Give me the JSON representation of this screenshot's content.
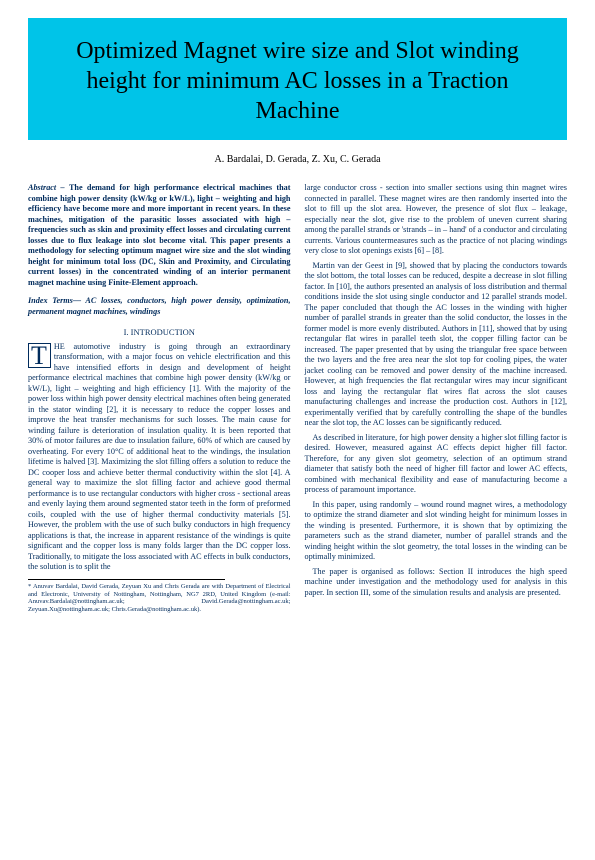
{
  "title": "Optimized Magnet wire size and Slot winding height for minimum AC losses in a Traction Machine",
  "authors": "A. Bardalai, D. Gerada, Z. Xu, C. Gerada",
  "abstract_lead": "Abstract – ",
  "abstract": "The demand for high performance electrical machines that combine high power density (kW/kg or kW/L), light – weighting and high efficiency have become more and more important in recent years. In these machines, mitigation of the parasitic losses associated with high – frequencies such as skin and proximity effect losses and circulating current losses due to flux leakage into slot become vital. This paper presents a methodology for selecting optimum magnet wire size and the slot winding height for minimum total loss (DC, Skin and Proximity, and Circulating current losses) in the concentrated winding of an interior permanent magnet machine using Finite-Element approach.",
  "index_terms_lead": "Index Terms— ",
  "index_terms": "AC losses, conductors, high power density, optimization, permanent magnet machines, windings",
  "section1": "I.   INTRODUCTION",
  "intro_first": "HE automotive industry is going through an extraordinary transformation, with a major focus on vehicle electrification and this have intensified efforts in design and development of height performance electrical machines that combine high power density (kW/kg or kW/L), light – weighting and high efficiency [1]. With the majority of the power loss within high power density electrical machines often being generated in the stator winding [2], it is necessary to reduce the copper losses and improve the heat transfer mechanisms for such losses. The main cause for winding failure is deterioration of insulation quality. It is been reported that 30% of motor failures are due to insulation failure, 60% of which are caused by overheating. For every 10°C of additional heat to the windings, the insulation lifetime is halved [3]. Maximizing the slot filling offers a solution to reduce the DC cooper loss and achieve better thermal conductivity within the slot [4]. A general way to maximize the slot filling factor and achieve good thermal performance is to use rectangular conductors with higher cross - sectional areas and evenly laying them around segmented stator teeth in the form of preformed coils, coupled with the use of higher thermal conductivity materials [5]. However, the problem with the use of such bulky conductors in high frequency applications is that, the increase in apparent resistance of the windings is quite significant and the copper loss is many folds larger than the DC copper loss. Traditionally, to mitigate the loss associated with AC effects in bulk conductors, the solution is to split the",
  "col2_p1": "large conductor cross - section into smaller sections using thin magnet wires connected in parallel. These magnet wires are then randomly inserted into the slot to fill up the slot area. However, the presence of slot flux – leakage, especially near the slot, give rise to the problem of uneven current sharing among the parallel strands or 'strands – in – hand' of a conductor and circulating currents. Various countermeasures such as the practice of not placing windings very close to slot openings exists [6] – [8].",
  "col2_p2": "Martin van der Geest in [9], showed that by placing the conductors towards the slot bottom, the total losses can be reduced, despite a decrease in slot filling factor. In [10], the authors presented an analysis of loss distribution and thermal conditions inside the slot using single conductor and 12 parallel strands model. The paper concluded that though the AC losses in the winding with higher number of parallel strands in greater than the solid conductor, the losses in the former model is more evenly distributed. Authors in [11], showed that by using rectangular flat wires in parallel teeth slot, the copper filling factor can be increased. The paper presented that by using the triangular free space between the two layers and the free area near the slot top for cooling pipes, the water jacket cooling can be removed and power density of the machine increased. However, at high frequencies the flat rectangular wires may incur significant loss and laying the rectangular flat wires flat across the slot causes manufacturing challenges and increase the production cost. Authors in [12], experimentally verified that by carefully controlling the shape of the bundles near the slot top, the AC losses can be significantly reduced.",
  "col2_p3": "As described in literature, for high power density a higher slot filling factor is desired. However, measured against AC effects depict higher fill factor. Therefore, for any given slot geometry, selection of an optimum strand diameter that satisfy both the need of higher fill factor and lower AC effects, combined with mechanical flexibility and ease of manufacturing become a process of paramount importance.",
  "col2_p4": "In this paper, using randomly – wound round magnet wires, a methodology to optimize the strand diameter and slot winding height for minimum losses in the winding is presented. Furthermore, it is shown that by optimizing the parameters such as the strand diameter, number of parallel strands and the winding height within the slot geometry, the total losses in the winding can be optimally minimized.",
  "col2_p5": "The paper is organised as follows: Section II introduces the high speed machine under investigation and the methodology used for analysis in this paper. In section III, some of the simulation results and analysis are presented.",
  "footnote": "* Anuvav Bardalai, David Gerada, Zeyuan Xu and Chris Gerada are with Department of Electrical and Electronic, University of Nottingham, Nottingham, NG7 2RD, United Kingdom (e-mail: Anuvav.Bardalai@nottingham.ac.uk; David.Gerada@nottingham.ac.uk; Zeyuan.Xu@nottingham.ac.uk; Chris.Gerada@nottingham.ac.uk)."
}
